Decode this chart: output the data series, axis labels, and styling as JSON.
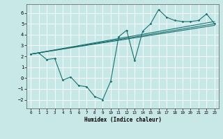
{
  "title": "",
  "xlabel": "Humidex (Indice chaleur)",
  "bg_color": "#c8e8e8",
  "line_color": "#1a7070",
  "grid_color": "#b0d8d8",
  "xlim": [
    -0.5,
    23.5
  ],
  "ylim": [
    -2.8,
    6.8
  ],
  "xticks": [
    0,
    1,
    2,
    3,
    4,
    5,
    6,
    7,
    8,
    9,
    10,
    11,
    12,
    13,
    14,
    15,
    16,
    17,
    18,
    19,
    20,
    21,
    22,
    23
  ],
  "yticks": [
    -2,
    -1,
    0,
    1,
    2,
    3,
    4,
    5,
    6
  ],
  "line1_x": [
    0,
    1,
    2,
    3,
    4,
    5,
    6,
    7,
    8,
    9,
    10,
    11,
    12,
    13,
    14,
    15,
    16,
    17,
    18,
    19,
    20,
    21,
    22,
    23
  ],
  "line1_y": [
    2.2,
    2.3,
    1.7,
    1.8,
    -0.2,
    0.1,
    -0.7,
    -0.8,
    -1.7,
    -2.0,
    -0.3,
    3.8,
    4.4,
    1.6,
    4.3,
    5.0,
    6.3,
    5.6,
    5.3,
    5.2,
    5.2,
    5.3,
    5.9,
    5.0
  ],
  "line2_x": [
    0,
    23
  ],
  "line2_y": [
    2.2,
    5.0
  ],
  "line3_x": [
    0,
    23
  ],
  "line3_y": [
    2.2,
    5.2
  ],
  "line4_x": [
    0,
    23
  ],
  "line4_y": [
    2.2,
    4.85
  ]
}
